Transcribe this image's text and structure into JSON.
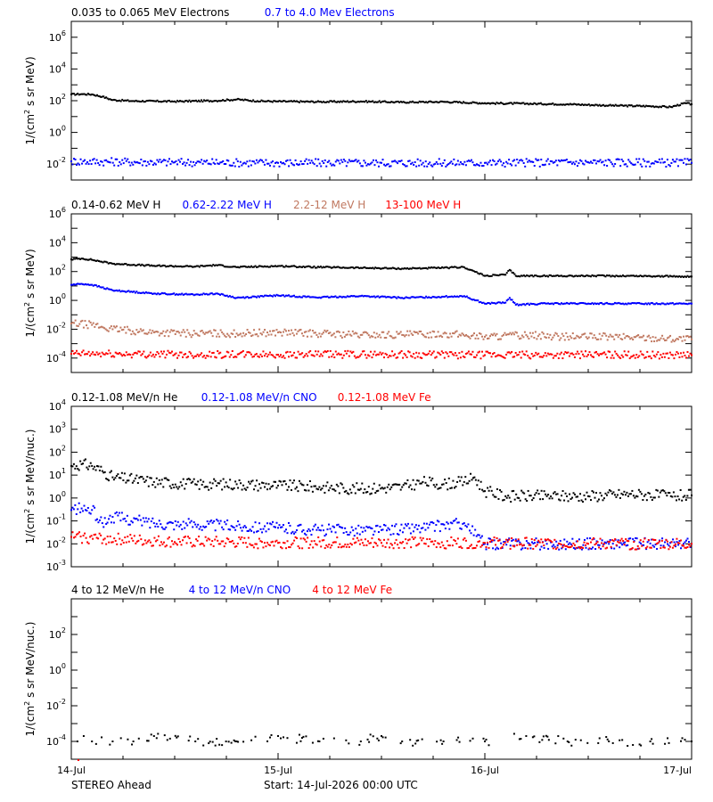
{
  "chart_data": [
    {
      "type": "scatter",
      "yscale": "log",
      "ylim": [
        0.001,
        10000000
      ],
      "yticks": [
        "10^6",
        "10^4",
        "10^2",
        "10^0",
        "10^-2"
      ],
      "ylabel": "1/(cm^2 s sr MeV)",
      "series": [
        {
          "name": "0.035 to 0.065 MeV Electrons",
          "color": "#000000",
          "points": [
            [
              0,
              250
            ],
            [
              0.05,
              260
            ],
            [
              0.1,
              250
            ],
            [
              0.15,
              180
            ],
            [
              0.2,
              110
            ],
            [
              0.3,
              95
            ],
            [
              0.5,
              90
            ],
            [
              0.7,
              100
            ],
            [
              0.8,
              120
            ],
            [
              0.9,
              95
            ],
            [
              1.0,
              90
            ],
            [
              1.2,
              85
            ],
            [
              1.4,
              90
            ],
            [
              1.6,
              80
            ],
            [
              1.8,
              85
            ],
            [
              2.0,
              70
            ],
            [
              2.2,
              65
            ],
            [
              2.4,
              60
            ],
            [
              2.6,
              50
            ],
            [
              2.8,
              45
            ],
            [
              2.9,
              40
            ],
            [
              2.97,
              70
            ],
            [
              3.0,
              60
            ]
          ]
        },
        {
          "name": "0.7 to 4.0 Mev Electrons",
          "color": "#0000ff",
          "points": [
            [
              0,
              0.015
            ],
            [
              0.5,
              0.013
            ],
            [
              1.0,
              0.012
            ],
            [
              1.5,
              0.012
            ],
            [
              2.0,
              0.012
            ],
            [
              2.5,
              0.013
            ],
            [
              3.0,
              0.012
            ]
          ]
        }
      ]
    },
    {
      "type": "scatter",
      "yscale": "log",
      "ylim": [
        1e-05,
        1000000
      ],
      "yticks": [
        "10^6",
        "10^4",
        "10^2",
        "10^0",
        "10^-2",
        "10^-4"
      ],
      "ylabel": "1/(cm^2 s sr MeV)",
      "series": [
        {
          "name": "0.14-0.62 MeV H",
          "color": "#000000",
          "points": [
            [
              0,
              700
            ],
            [
              0.05,
              800
            ],
            [
              0.1,
              650
            ],
            [
              0.2,
              350
            ],
            [
              0.4,
              250
            ],
            [
              0.6,
              220
            ],
            [
              0.7,
              280
            ],
            [
              0.8,
              200
            ],
            [
              1.0,
              240
            ],
            [
              1.2,
              200
            ],
            [
              1.4,
              180
            ],
            [
              1.6,
              160
            ],
            [
              1.8,
              180
            ],
            [
              1.9,
              200
            ],
            [
              2.0,
              50
            ],
            [
              2.1,
              60
            ],
            [
              2.12,
              130
            ],
            [
              2.15,
              50
            ],
            [
              2.3,
              50
            ],
            [
              2.5,
              50
            ],
            [
              2.7,
              50
            ],
            [
              3.0,
              45
            ]
          ]
        },
        {
          "name": "0.62-2.22 MeV H",
          "color": "#0000ff",
          "points": [
            [
              0,
              12
            ],
            [
              0.05,
              14
            ],
            [
              0.1,
              12
            ],
            [
              0.2,
              5
            ],
            [
              0.4,
              3
            ],
            [
              0.6,
              2.5
            ],
            [
              0.7,
              3
            ],
            [
              0.8,
              1.5
            ],
            [
              1.0,
              2.2
            ],
            [
              1.2,
              1.6
            ],
            [
              1.4,
              2
            ],
            [
              1.6,
              1.5
            ],
            [
              1.8,
              1.8
            ],
            [
              1.9,
              2
            ],
            [
              2.0,
              0.6
            ],
            [
              2.1,
              0.7
            ],
            [
              2.12,
              1.5
            ],
            [
              2.15,
              0.5
            ],
            [
              2.3,
              0.6
            ],
            [
              2.5,
              0.6
            ],
            [
              2.7,
              0.6
            ],
            [
              3.0,
              0.6
            ]
          ]
        },
        {
          "name": "2.2-12 MeV H",
          "color": "#c07860",
          "points": [
            [
              0,
              0.025
            ],
            [
              0.1,
              0.02
            ],
            [
              0.2,
              0.01
            ],
            [
              0.4,
              0.006
            ],
            [
              0.6,
              0.005
            ],
            [
              0.8,
              0.005
            ],
            [
              1.0,
              0.006
            ],
            [
              1.2,
              0.005
            ],
            [
              1.4,
              0.004
            ],
            [
              1.6,
              0.004
            ],
            [
              1.8,
              0.005
            ],
            [
              2.0,
              0.003
            ],
            [
              2.2,
              0.004
            ],
            [
              2.4,
              0.003
            ],
            [
              2.6,
              0.003
            ],
            [
              2.8,
              0.0025
            ],
            [
              3.0,
              0.002
            ]
          ]
        },
        {
          "name": "13-100 MeV H",
          "color": "#ff0000",
          "points": [
            [
              0,
              0.0002
            ],
            [
              0.5,
              0.00018
            ],
            [
              1.0,
              0.00017
            ],
            [
              1.5,
              0.00018
            ],
            [
              2.0,
              0.00016
            ],
            [
              2.5,
              0.00017
            ],
            [
              3.0,
              0.00016
            ]
          ]
        }
      ]
    },
    {
      "type": "scatter",
      "yscale": "log",
      "ylim": [
        0.001,
        10000
      ],
      "yticks": [
        "10^4",
        "10^3",
        "10^2",
        "10^1",
        "10^0",
        "10^-1",
        "10^-2",
        "10^-3"
      ],
      "ylabel": "1/(cm^2 s sr MeV/nuc.)",
      "series": [
        {
          "name": "0.12-1.08 MeV/n He",
          "color": "#000000",
          "points": [
            [
              0,
              25
            ],
            [
              0.05,
              30
            ],
            [
              0.1,
              25
            ],
            [
              0.15,
              15
            ],
            [
              0.2,
              8
            ],
            [
              0.4,
              5
            ],
            [
              0.6,
              4
            ],
            [
              0.8,
              4
            ],
            [
              1.0,
              3.5
            ],
            [
              1.2,
              3
            ],
            [
              1.4,
              2.5
            ],
            [
              1.6,
              3
            ],
            [
              1.7,
              5
            ],
            [
              1.8,
              4
            ],
            [
              1.9,
              5
            ],
            [
              1.95,
              8
            ],
            [
              2.0,
              2
            ],
            [
              2.1,
              1.2
            ],
            [
              2.3,
              1.2
            ],
            [
              2.5,
              1.2
            ],
            [
              2.7,
              1.5
            ],
            [
              2.9,
              1.2
            ],
            [
              3.0,
              1.3
            ]
          ]
        },
        {
          "name": "0.12-1.08 MeV/n CNO",
          "color": "#0000ff",
          "points": [
            [
              0,
              0.3
            ],
            [
              0.05,
              0.35
            ],
            [
              0.1,
              0.3
            ],
            [
              0.15,
              0.08
            ],
            [
              0.2,
              0.15
            ],
            [
              0.4,
              0.08
            ],
            [
              0.6,
              0.07
            ],
            [
              0.8,
              0.06
            ],
            [
              1.0,
              0.05
            ],
            [
              1.2,
              0.04
            ],
            [
              1.5,
              0.04
            ],
            [
              1.7,
              0.05
            ],
            [
              1.9,
              0.08
            ],
            [
              2.0,
              0.01
            ],
            [
              2.3,
              0.01
            ],
            [
              2.6,
              0.01
            ],
            [
              3.0,
              0.01
            ]
          ]
        },
        {
          "name": "0.12-1.08 MeV Fe",
          "color": "#ff0000",
          "points": [
            [
              0,
              0.02
            ],
            [
              0.5,
              0.012
            ],
            [
              1.0,
              0.011
            ],
            [
              1.5,
              0.011
            ],
            [
              2.0,
              0.011
            ],
            [
              2.5,
              0.01
            ],
            [
              3.0,
              0.01
            ]
          ]
        }
      ]
    },
    {
      "type": "scatter",
      "yscale": "log",
      "ylim": [
        1e-05,
        10000
      ],
      "yticks": [
        "10^2",
        "10^0",
        "10^-2",
        "10^-4"
      ],
      "ylabel": "1/(cm^2 s sr MeV/nuc.)",
      "series": [
        {
          "name": "4 to 12 MeV/n He",
          "color": "#000000",
          "points": [
            [
              0.03,
              0.0001
            ],
            [
              0.06,
              0.0002
            ],
            [
              0.1,
              0.0001
            ],
            [
              0.2,
              0.0001
            ],
            [
              0.3,
              0.0001
            ],
            [
              0.4,
              0.0002
            ],
            [
              0.6,
              0.0001
            ],
            [
              0.8,
              0.0001
            ],
            [
              1.0,
              0.0002
            ],
            [
              1.2,
              0.0001
            ],
            [
              1.4,
              0.0001
            ],
            [
              1.5,
              0.0002
            ],
            [
              1.6,
              0.0001
            ],
            [
              1.8,
              0.0001
            ],
            [
              2.0,
              0.0001
            ],
            [
              2.2,
              0.0002
            ],
            [
              2.4,
              0.0001
            ],
            [
              2.6,
              0.0001
            ],
            [
              2.8,
              0.0001
            ],
            [
              3.0,
              0.0001
            ]
          ]
        },
        {
          "name": "4 to 12 MeV/n CNO",
          "color": "#0000ff",
          "points": []
        },
        {
          "name": "4 to 12 MeV Fe",
          "color": "#ff0000",
          "points": [
            [
              0.03,
              1e-05
            ]
          ]
        }
      ]
    }
  ],
  "x_axis": {
    "ticks": [
      "14-Jul",
      "15-Jul",
      "16-Jul",
      "17-Jul"
    ],
    "range_days": [
      0,
      3
    ]
  },
  "footer": {
    "spacecraft": "STEREO Ahead",
    "start": "Start: 14-Jul-2026 00:00 UTC"
  }
}
